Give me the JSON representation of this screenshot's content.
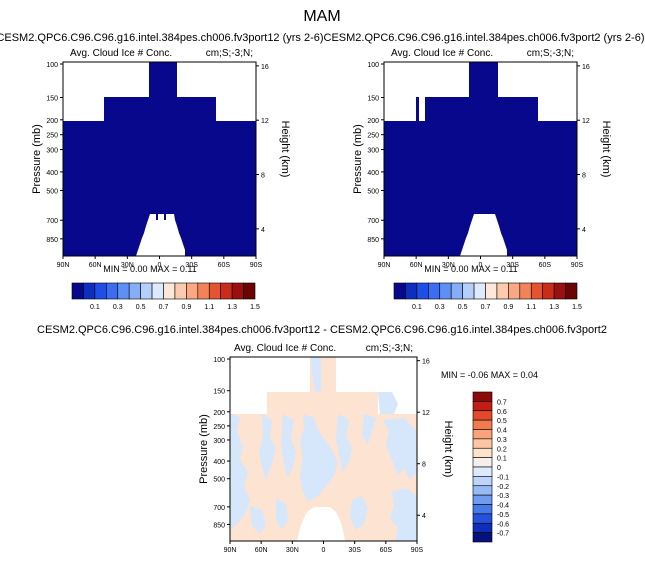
{
  "page_title": "MAM",
  "panel_a": {
    "title": "CESM2.QPC6.C96.C96.g16.intel.384pes.ch006.fv3port12 (yrs 2-6)",
    "left_label": "Avg. Cloud Ice # Conc.",
    "right_label": "cm;S;-3;N;",
    "stats": "MIN =   0.00   MAX =   0.11"
  },
  "panel_b": {
    "title": "CESM2.QPC6.C96.C96.g16.intel.384pes.ch006.fv3port2 (yrs 2-6)",
    "left_label": "Avg. Cloud Ice # Conc.",
    "right_label": "cm;S;-3;N;",
    "stats": "MIN =   0.00   MAX =   0.11"
  },
  "panel_c": {
    "title": "CESM2.QPC6.C96.C96.g16.intel.384pes.ch006.fv3port12 - CESM2.QPC6.C96.C96.g16.intel.384pes.ch006.fv3port2",
    "left_label": "Avg. Cloud Ice # Conc.",
    "right_label": "cm;S;-3;N;",
    "stats": "MIN =  -0.06   MAX =   0.04"
  },
  "axes": {
    "ylabel": "Pressure (mb)",
    "ylabel_right": "Height (km)",
    "x_ticks": [
      "90N",
      "60N",
      "30N",
      "0",
      "30S",
      "60S",
      "90S"
    ],
    "p_ticks": [
      "100",
      "150",
      "200",
      "250",
      "300",
      "400",
      "500",
      "700",
      "850"
    ],
    "z_ticks": [
      "16",
      "12",
      "8",
      "4"
    ]
  },
  "colorbar_abs": {
    "labels": [
      "0.1",
      "0.3",
      "0.5",
      "0.7",
      "0.9",
      "1.1",
      "1.3",
      "1.5"
    ],
    "colors": [
      "#08088c",
      "#0c2fc0",
      "#1f4ee6",
      "#3a6df0",
      "#5d8ff4",
      "#86adf7",
      "#b5cffb",
      "#dde9fd",
      "#fde7d8",
      "#fccaae",
      "#f8a882",
      "#f38259",
      "#e5542f",
      "#c92c1b",
      "#9b0f0e",
      "#6b0404"
    ]
  },
  "colorbar_diff": {
    "labels": [
      "0.7",
      "0.6",
      "0.5",
      "0.4",
      "0.3",
      "0.2",
      "0.1",
      "0",
      "-0.1",
      "-0.2",
      "-0.3",
      "-0.4",
      "-0.5",
      "-0.6",
      "-0.7"
    ],
    "colors": [
      "#8c0a0a",
      "#c01e16",
      "#e34a2c",
      "#f37a4d",
      "#f9a37a",
      "#fcc6a4",
      "#fde2cc",
      "#f5f0ec",
      "#ddeafc",
      "#bdd5fa",
      "#97bbf6",
      "#6f9bf1",
      "#4679ea",
      "#2452dc",
      "#0c2eb8",
      "#05127e"
    ]
  },
  "chart_data": [
    {
      "type": "heatmap",
      "title": "CESM2.QPC6.C96.C96.g16.intel.384pes.ch006.fv3port12 (yrs 2-6)",
      "xlabel": "",
      "ylabel": "Pressure (mb)",
      "x_ticks": [
        "90N",
        "60N",
        "30N",
        "0",
        "30S",
        "60S",
        "90S"
      ],
      "y_range_mb": [
        100,
        1000
      ],
      "fill_value_range": [
        0.0,
        0.11
      ],
      "mask_description": "white (no data) above ~150 mb outside 10N-10S, above ~200 mb poleward of ~45 deg, and below ~650 mb between ~20N and ~20S"
    },
    {
      "type": "heatmap",
      "title": "CESM2.QPC6.C96.C96.g16.intel.384pes.ch006.fv3port2 (yrs 2-6)",
      "xlabel": "",
      "ylabel": "Pressure (mb)",
      "x_ticks": [
        "90N",
        "60N",
        "30N",
        "0",
        "30S",
        "60S",
        "90S"
      ],
      "y_range_mb": [
        100,
        1000
      ],
      "fill_value_range": [
        0.0,
        0.11
      ]
    },
    {
      "type": "heatmap",
      "title": "CESM2.QPC6.C96.C96.g16.intel.384pes.ch006.fv3port12 - CESM2.QPC6.C96.C96.g16.intel.384pes.ch006.fv3port2",
      "xlabel": "",
      "ylabel": "Pressure (mb)",
      "x_ticks": [
        "90N",
        "60N",
        "30N",
        "0",
        "30S",
        "60S",
        "90S"
      ],
      "y_range_mb": [
        100,
        1000
      ],
      "value_range": [
        -0.06,
        0.04
      ]
    }
  ]
}
